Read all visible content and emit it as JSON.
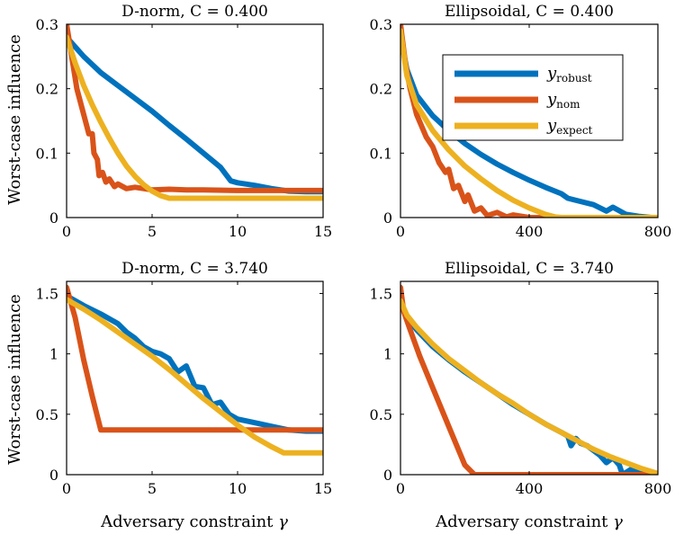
{
  "figure": {
    "ylabel_top": "Worst-case influence",
    "ylabel_bottom": "Worst-case influence",
    "xlabel_left": "Adversary constraint",
    "xlabel_right": "Adversary constraint",
    "xlabel_symbol": "γ"
  },
  "legend": {
    "entries": [
      {
        "symbol": "y",
        "sub": "robust",
        "color": "#0072BD"
      },
      {
        "symbol": "y",
        "sub": "nom",
        "color": "#D95319"
      },
      {
        "symbol": "y",
        "sub": "expect",
        "color": "#EDB120"
      }
    ]
  },
  "chart_data": [
    {
      "type": "line",
      "title": "D-norm, C = 0.400",
      "xlabel": "",
      "ylabel": "Worst-case influence",
      "xlim": [
        0,
        15
      ],
      "ylim": [
        0,
        0.3
      ],
      "xticks": [
        0,
        5,
        10,
        15
      ],
      "xtick_labels": [
        "0",
        "5",
        "10",
        "15"
      ],
      "yticks": [
        0,
        0.1,
        0.2,
        0.3
      ],
      "ytick_labels": [
        "0",
        "0.1",
        "0.2",
        "0.3"
      ],
      "series": [
        {
          "name": "y_robust",
          "color": "#0072BD",
          "x": [
            0,
            1,
            2,
            3,
            4,
            5,
            6,
            7,
            8,
            9,
            9.6,
            10,
            11,
            12,
            13,
            14,
            15
          ],
          "y": [
            0.28,
            0.25,
            0.225,
            0.205,
            0.185,
            0.165,
            0.143,
            0.122,
            0.1,
            0.078,
            0.057,
            0.054,
            0.05,
            0.045,
            0.041,
            0.04,
            0.04
          ]
        },
        {
          "name": "y_nom",
          "color": "#D95319",
          "x": [
            0,
            0.3,
            0.6,
            0.9,
            1.1,
            1.3,
            1.5,
            1.6,
            1.8,
            1.9,
            2.1,
            2.3,
            2.5,
            2.8,
            3,
            3.5,
            4,
            5,
            6,
            7,
            8,
            10,
            12,
            15
          ],
          "y": [
            0.3,
            0.25,
            0.2,
            0.17,
            0.15,
            0.13,
            0.13,
            0.1,
            0.09,
            0.065,
            0.07,
            0.055,
            0.06,
            0.048,
            0.052,
            0.045,
            0.047,
            0.043,
            0.044,
            0.043,
            0.043,
            0.042,
            0.042,
            0.042
          ]
        },
        {
          "name": "y_expect",
          "color": "#EDB120",
          "x": [
            0,
            0.5,
            1,
            1.5,
            2,
            2.5,
            3,
            3.5,
            4,
            4.5,
            5,
            5.5,
            6,
            7,
            8,
            10,
            12,
            15
          ],
          "y": [
            0.28,
            0.24,
            0.205,
            0.175,
            0.148,
            0.123,
            0.1,
            0.08,
            0.064,
            0.051,
            0.041,
            0.034,
            0.03,
            0.03,
            0.03,
            0.03,
            0.03,
            0.03
          ]
        }
      ]
    },
    {
      "type": "line",
      "title": "Ellipsoidal, C = 0.400",
      "xlabel": "",
      "ylabel": "",
      "xlim": [
        0,
        800
      ],
      "ylim": [
        0,
        0.3
      ],
      "xticks": [
        0,
        400,
        800
      ],
      "xtick_labels": [
        "0",
        "400",
        "800"
      ],
      "yticks": [
        0,
        0.1,
        0.2,
        0.3
      ],
      "ytick_labels": [
        "0",
        "0.1",
        "0.2",
        "0.3"
      ],
      "series": [
        {
          "name": "y_robust",
          "color": "#0072BD",
          "x": [
            0,
            20,
            50,
            100,
            150,
            200,
            250,
            300,
            350,
            400,
            450,
            500,
            520,
            560,
            600,
            640,
            660,
            700,
            740,
            780,
            800
          ],
          "y": [
            0.28,
            0.23,
            0.19,
            0.158,
            0.135,
            0.115,
            0.098,
            0.083,
            0.07,
            0.058,
            0.047,
            0.037,
            0.03,
            0.025,
            0.02,
            0.01,
            0.016,
            0.005,
            0.002,
            0,
            0
          ]
        },
        {
          "name": "y_nom",
          "color": "#D95319",
          "x": [
            0,
            15,
            30,
            50,
            80,
            100,
            120,
            140,
            150,
            165,
            180,
            200,
            210,
            230,
            250,
            270,
            300,
            330,
            350,
            400,
            500,
            800
          ],
          "y": [
            0.3,
            0.24,
            0.2,
            0.16,
            0.125,
            0.11,
            0.085,
            0.07,
            0.075,
            0.045,
            0.05,
            0.025,
            0.035,
            0.01,
            0.015,
            0.003,
            0.008,
            0.001,
            0.004,
            0,
            0,
            0
          ]
        },
        {
          "name": "y_expect",
          "color": "#EDB120",
          "x": [
            0,
            20,
            50,
            100,
            150,
            200,
            250,
            300,
            350,
            400,
            450,
            480,
            500,
            600,
            700,
            800
          ],
          "y": [
            0.29,
            0.22,
            0.175,
            0.135,
            0.105,
            0.08,
            0.06,
            0.042,
            0.027,
            0.015,
            0.005,
            0.001,
            0,
            0,
            0,
            0
          ]
        }
      ]
    },
    {
      "type": "line",
      "title": "D-norm, C = 3.740",
      "xlabel": "Adversary constraint γ",
      "ylabel": "Worst-case influence",
      "xlim": [
        0,
        15
      ],
      "ylim": [
        0,
        1.6
      ],
      "xticks": [
        0,
        5,
        10,
        15
      ],
      "xtick_labels": [
        "0",
        "5",
        "10",
        "15"
      ],
      "yticks": [
        0,
        0.5,
        1,
        1.5
      ],
      "ytick_labels": [
        "0",
        "0.5",
        "1",
        "1.5"
      ],
      "series": [
        {
          "name": "y_robust",
          "color": "#0072BD",
          "x": [
            0,
            1,
            2,
            3,
            3.5,
            4,
            4.5,
            5,
            5.5,
            6,
            6.5,
            7,
            7.5,
            8,
            8.5,
            9,
            9.5,
            10,
            11,
            12,
            13,
            14,
            15
          ],
          "y": [
            1.48,
            1.4,
            1.33,
            1.25,
            1.18,
            1.13,
            1.06,
            1.02,
            1.0,
            0.96,
            0.85,
            0.9,
            0.73,
            0.72,
            0.58,
            0.6,
            0.5,
            0.46,
            0.43,
            0.4,
            0.37,
            0.36,
            0.36
          ]
        },
        {
          "name": "y_nom",
          "color": "#D95319",
          "x": [
            0,
            0.5,
            1,
            1.5,
            2,
            3,
            5,
            8,
            10,
            12,
            15
          ],
          "y": [
            1.55,
            1.3,
            0.95,
            0.65,
            0.37,
            0.37,
            0.37,
            0.37,
            0.37,
            0.37,
            0.37
          ]
        },
        {
          "name": "y_expect",
          "color": "#EDB120",
          "x": [
            0,
            1,
            2,
            3,
            4,
            5,
            6,
            7,
            8,
            9,
            10,
            11,
            12,
            12.7,
            13,
            14,
            15
          ],
          "y": [
            1.45,
            1.37,
            1.28,
            1.18,
            1.08,
            0.98,
            0.87,
            0.75,
            0.63,
            0.52,
            0.41,
            0.31,
            0.23,
            0.18,
            0.18,
            0.18,
            0.18
          ]
        }
      ]
    },
    {
      "type": "line",
      "title": "Ellipsoidal, C = 3.740",
      "xlabel": "Adversary constraint γ",
      "ylabel": "",
      "xlim": [
        0,
        800
      ],
      "ylim": [
        0,
        1.6
      ],
      "xticks": [
        0,
        400,
        800
      ],
      "xtick_labels": [
        "0",
        "400",
        "800"
      ],
      "yticks": [
        0,
        0.5,
        1,
        1.5
      ],
      "ytick_labels": [
        "0",
        "0.5",
        "1",
        "1.5"
      ],
      "series": [
        {
          "name": "y_robust",
          "color": "#0072BD",
          "x": [
            0,
            20,
            50,
            100,
            150,
            200,
            250,
            300,
            350,
            400,
            450,
            500,
            520,
            530,
            545,
            560,
            580,
            600,
            620,
            640,
            660,
            680,
            690,
            720,
            760,
            800
          ],
          "y": [
            1.45,
            1.3,
            1.2,
            1.06,
            0.95,
            0.85,
            0.76,
            0.67,
            0.58,
            0.5,
            0.42,
            0.35,
            0.32,
            0.24,
            0.3,
            0.26,
            0.24,
            0.2,
            0.16,
            0.1,
            0.14,
            0.08,
            0.0,
            0.05,
            0.02,
            0
          ]
        },
        {
          "name": "y_nom",
          "color": "#D95319",
          "x": [
            0,
            10,
            30,
            60,
            100,
            150,
            200,
            230,
            300,
            400,
            500,
            600,
            700,
            800
          ],
          "y": [
            1.55,
            1.35,
            1.2,
            0.98,
            0.72,
            0.4,
            0.08,
            0.0,
            0,
            0,
            0,
            0,
            0,
            0
          ]
        },
        {
          "name": "y_expect",
          "color": "#EDB120",
          "x": [
            0,
            20,
            50,
            100,
            150,
            200,
            250,
            300,
            350,
            400,
            450,
            500,
            550,
            600,
            650,
            700,
            750,
            800
          ],
          "y": [
            1.44,
            1.32,
            1.22,
            1.08,
            0.96,
            0.86,
            0.76,
            0.67,
            0.59,
            0.5,
            0.42,
            0.35,
            0.28,
            0.21,
            0.15,
            0.1,
            0.05,
            0.01
          ]
        }
      ]
    }
  ]
}
